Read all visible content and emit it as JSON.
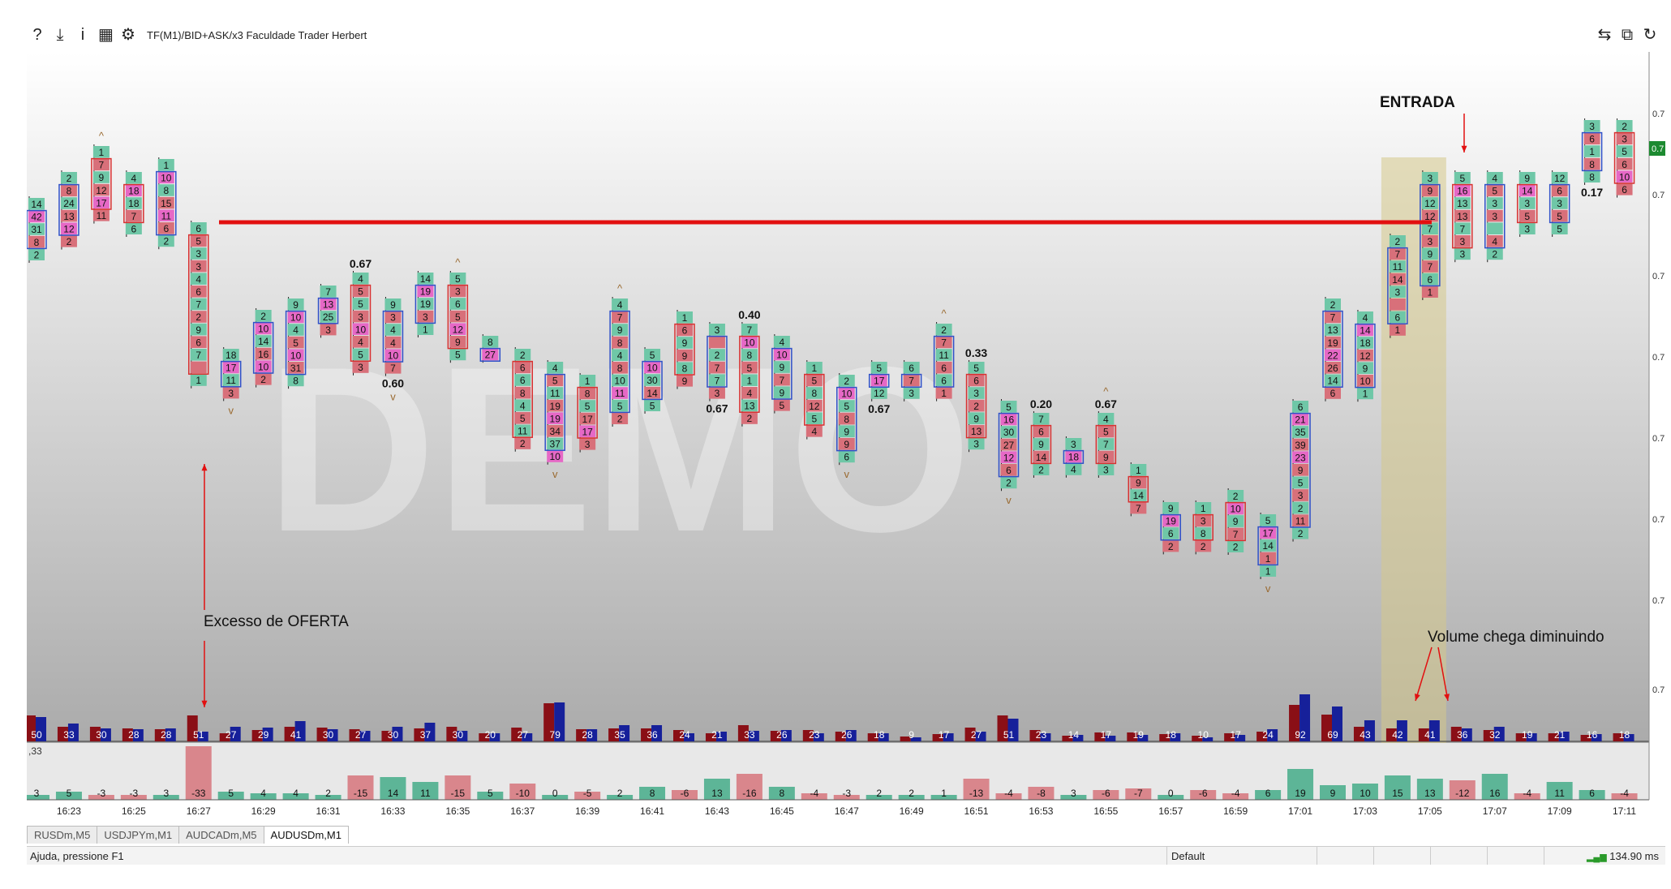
{
  "toolbar": {
    "icons": [
      "help-icon",
      "download-icon",
      "info-icon",
      "template-icon",
      "gear-icon"
    ],
    "icon_glyphs": [
      "?",
      "⤓",
      "i",
      "▦",
      "⚙"
    ],
    "title": "TF(M1)/BID+ASK/x3  Faculdade Trader Herbert",
    "right_icons": [
      "arrows-icon",
      "screenshot-icon",
      "refresh-icon"
    ],
    "right_glyphs": [
      "⇆",
      "⧉",
      "↻"
    ]
  },
  "watermark": "DEMO",
  "tabs": [
    {
      "label": "RUSDm,M5",
      "active": false
    },
    {
      "label": "USDJPYm,M1",
      "active": false
    },
    {
      "label": "AUDCADm,M5",
      "active": false
    },
    {
      "label": "AUDUSDm,M1",
      "active": true
    }
  ],
  "status": {
    "help_text": "Ajuda, pressione F1",
    "profile": "Default",
    "ping": "134.90 ms"
  },
  "colors": {
    "bid": "#d8707a",
    "ask": "#6fc7a7",
    "pink_cell": "#e668c6",
    "box_sell": "#d83030",
    "box_buy": "#3050c8",
    "vol_red": "#8a0f16",
    "vol_blue": "#16209a",
    "delta_pos": "#5db597",
    "delta_neg": "#d9868c",
    "level_line": "#e21010",
    "price_tag": "#1c8a30"
  },
  "chart_data": {
    "type": "footprint",
    "time_labels": [
      "16:23",
      "16:25",
      "16:27",
      "16:29",
      "16:31",
      "16:33",
      "16:35",
      "16:37",
      "16:39",
      "16:41",
      "16:43",
      "16:45",
      "16:47",
      "16:49",
      "16:51",
      "16:53",
      "16:55",
      "16:57",
      "16:59",
      "17:01",
      "17:03",
      "17:05",
      "17:07",
      "17:09",
      "17:11"
    ],
    "price_axis_label": "0.7",
    "current_price_label": "0.7",
    "candles": [
      {
        "top": 180,
        "cells": [
          "14",
          "42",
          "31",
          "8",
          "2"
        ],
        "dir": "buy"
      },
      {
        "top": 148,
        "cells": [
          "2",
          "8",
          "24",
          "13",
          "12",
          "2"
        ],
        "dir": "buy"
      },
      {
        "top": 116,
        "cells": [
          "1",
          "7",
          "9",
          "12",
          "17",
          "11"
        ],
        "dir": "sell",
        "arrow_up": true
      },
      {
        "top": 148,
        "cells": [
          "4",
          "18",
          "18",
          "7",
          "6"
        ],
        "dir": "sell"
      },
      {
        "top": 132,
        "cells": [
          "1",
          "10",
          "8",
          "15",
          "11",
          "6",
          "2"
        ],
        "dir": "buy"
      },
      {
        "top": 210,
        "cells": [
          "6",
          "5",
          "3",
          "3",
          "4",
          "6",
          "7",
          "2",
          "9",
          "6",
          "7",
          "",
          "1"
        ],
        "dir": "sell"
      },
      {
        "top": 366,
        "cells": [
          "18",
          "17",
          "11",
          "3"
        ],
        "dir": "buy",
        "arrow_down": true
      },
      {
        "top": 318,
        "cells": [
          "2",
          "10",
          "14",
          "16",
          "10",
          "2"
        ],
        "dir": "buy"
      },
      {
        "top": 304,
        "cells": [
          "9",
          "10",
          "4",
          "5",
          "10",
          "31",
          "8"
        ],
        "dir": "buy"
      },
      {
        "top": 288,
        "cells": [
          "7",
          "13",
          "25",
          "3"
        ],
        "dir": "buy"
      },
      {
        "top": 272,
        "cells": [
          "4",
          "5",
          "5",
          "3",
          "10",
          "4",
          "5",
          "3"
        ],
        "dir": "sell",
        "label_above": "0.67"
      },
      {
        "top": 304,
        "cells": [
          "9",
          "3",
          "4",
          "4",
          "10",
          "7"
        ],
        "dir": "buy",
        "label_below": "0.60",
        "arrow_down": true
      },
      {
        "top": 272,
        "cells": [
          "14",
          "19",
          "19",
          "3",
          "1"
        ],
        "dir": "buy"
      },
      {
        "top": 272,
        "cells": [
          "5",
          "3",
          "6",
          "5",
          "12",
          "9",
          "5"
        ],
        "dir": "sell",
        "arrow_up": true
      },
      {
        "top": 350,
        "cells": [
          "8",
          "27"
        ],
        "dir": "buy"
      },
      {
        "top": 366,
        "cells": [
          "2",
          "6",
          "6",
          "8",
          "4",
          "5",
          "11",
          "2"
        ],
        "dir": "sell"
      },
      {
        "top": 382,
        "cells": [
          "4",
          "5",
          "11",
          "19",
          "19",
          "34",
          "37",
          "10"
        ],
        "dir": "buy",
        "arrow_down": true
      },
      {
        "top": 398,
        "cells": [
          "1",
          "8",
          "5",
          "17",
          "17",
          "3"
        ],
        "dir": "sell"
      },
      {
        "top": 304,
        "cells": [
          "4",
          "7",
          "9",
          "8",
          "4",
          "8",
          "10",
          "11",
          "5",
          "2"
        ],
        "dir": "buy",
        "arrow_up": true
      },
      {
        "top": 366,
        "cells": [
          "5",
          "10",
          "30",
          "14",
          "5"
        ],
        "dir": "buy"
      },
      {
        "top": 320,
        "cells": [
          "1",
          "6",
          "9",
          "9",
          "8",
          "9"
        ],
        "dir": "sell"
      },
      {
        "top": 335,
        "cells": [
          "3",
          "",
          "2",
          "7",
          "7",
          "3"
        ],
        "dir": "buy",
        "label_below": "0.67"
      },
      {
        "top": 335,
        "cells": [
          "7",
          "10",
          "8",
          "5",
          "1",
          "4",
          "13",
          "2"
        ],
        "dir": "sell",
        "label_above": "0.40"
      },
      {
        "top": 350,
        "cells": [
          "4",
          "10",
          "9",
          "7",
          "9",
          "5"
        ],
        "dir": "buy"
      },
      {
        "top": 382,
        "cells": [
          "1",
          "5",
          "8",
          "12",
          "5",
          "4"
        ],
        "dir": "sell"
      },
      {
        "top": 398,
        "cells": [
          "2",
          "10",
          "5",
          "8",
          "9",
          "9",
          "6"
        ],
        "dir": "buy",
        "arrow_down": true
      },
      {
        "top": 382,
        "cells": [
          "5",
          "17",
          "12"
        ],
        "dir": "buy",
        "label_below": "0.67"
      },
      {
        "top": 382,
        "cells": [
          "6",
          "7",
          "3"
        ],
        "dir": "buy"
      },
      {
        "top": 335,
        "cells": [
          "2",
          "7",
          "11",
          "6",
          "6",
          "1"
        ],
        "dir": "buy",
        "arrow_up": true
      },
      {
        "top": 382,
        "cells": [
          "5",
          "6",
          "3",
          "2",
          "9",
          "13",
          "3"
        ],
        "dir": "sell",
        "label_above": "0.33"
      },
      {
        "top": 430,
        "cells": [
          "5",
          "16",
          "30",
          "27",
          "12",
          "6",
          "2"
        ],
        "dir": "buy",
        "arrow_down": true
      },
      {
        "top": 445,
        "cells": [
          "7",
          "6",
          "9",
          "14",
          "2"
        ],
        "dir": "sell",
        "label_above": "0.20"
      },
      {
        "top": 476,
        "cells": [
          "3",
          "18",
          "4"
        ],
        "dir": "buy"
      },
      {
        "top": 445,
        "cells": [
          "4",
          "5",
          "7",
          "9",
          "3"
        ],
        "dir": "sell",
        "label_above": "0.67",
        "arrow_up": true
      },
      {
        "top": 508,
        "cells": [
          "1",
          "9",
          "14",
          "7"
        ],
        "dir": "sell"
      },
      {
        "top": 555,
        "cells": [
          "9",
          "19",
          "6",
          "2"
        ],
        "dir": "buy"
      },
      {
        "top": 555,
        "cells": [
          "1",
          "3",
          "8",
          "2"
        ],
        "dir": "sell"
      },
      {
        "top": 540,
        "cells": [
          "2",
          "10",
          "9",
          "7",
          "2"
        ],
        "dir": "sell"
      },
      {
        "top": 570,
        "cells": [
          "5",
          "17",
          "14",
          "1",
          "1"
        ],
        "dir": "buy",
        "arrow_down": true
      },
      {
        "top": 430,
        "cells": [
          "6",
          "21",
          "35",
          "39",
          "23",
          "9",
          "5",
          "3",
          "2",
          "11",
          "2"
        ],
        "dir": "buy"
      },
      {
        "top": 304,
        "cells": [
          "2",
          "7",
          "13",
          "19",
          "22",
          "26",
          "14",
          "6"
        ],
        "dir": "buy"
      },
      {
        "top": 320,
        "cells": [
          "4",
          "14",
          "18",
          "12",
          "9",
          "10",
          "1"
        ],
        "dir": "buy"
      },
      {
        "top": 226,
        "cells": [
          "2",
          "7",
          "11",
          "14",
          "3",
          "",
          "6",
          "1"
        ],
        "dir": "buy"
      },
      {
        "top": 148,
        "cells": [
          "3",
          "9",
          "12",
          "12",
          "7",
          "3",
          "9",
          "7",
          "6",
          "1"
        ],
        "dir": "buy"
      },
      {
        "top": 148,
        "cells": [
          "5",
          "16",
          "13",
          "13",
          "7",
          "3",
          "3"
        ],
        "dir": "sell"
      },
      {
        "top": 148,
        "cells": [
          "4",
          "5",
          "3",
          "3",
          "",
          "4",
          "2"
        ],
        "dir": "buy"
      },
      {
        "top": 148,
        "cells": [
          "9",
          "14",
          "3",
          "5",
          "3"
        ],
        "dir": "sell"
      },
      {
        "top": 148,
        "cells": [
          "12",
          "6",
          "3",
          "5",
          "5"
        ],
        "dir": "buy"
      },
      {
        "top": 84,
        "cells": [
          "3",
          "6",
          "1",
          "8",
          "8"
        ],
        "dir": "buy",
        "label_below": "0.17"
      },
      {
        "top": 84,
        "cells": [
          "2",
          "3",
          "5",
          "6",
          "10",
          "6"
        ],
        "dir": "sell"
      }
    ],
    "volume": [
      {
        "label": "50",
        "red": 32,
        "blue": 30
      },
      {
        "label": "33",
        "red": 18,
        "blue": 22
      },
      {
        "label": "30",
        "red": 18,
        "blue": 16
      },
      {
        "label": "28",
        "red": 16,
        "blue": 15
      },
      {
        "label": "28",
        "red": 15,
        "blue": 16
      },
      {
        "label": "51",
        "red": 32,
        "blue": 12
      },
      {
        "label": "27",
        "red": 10,
        "blue": 18
      },
      {
        "label": "29",
        "red": 14,
        "blue": 17
      },
      {
        "label": "41",
        "red": 18,
        "blue": 25
      },
      {
        "label": "30",
        "red": 17,
        "blue": 15
      },
      {
        "label": "27",
        "red": 15,
        "blue": 13
      },
      {
        "label": "30",
        "red": 13,
        "blue": 18
      },
      {
        "label": "37",
        "red": 16,
        "blue": 23
      },
      {
        "label": "30",
        "red": 18,
        "blue": 13
      },
      {
        "label": "20",
        "red": 10,
        "blue": 10
      },
      {
        "label": "27",
        "red": 17,
        "blue": 10
      },
      {
        "label": "79",
        "red": 47,
        "blue": 48
      },
      {
        "label": "28",
        "red": 15,
        "blue": 15
      },
      {
        "label": "35",
        "red": 16,
        "blue": 20
      },
      {
        "label": "36",
        "red": 16,
        "blue": 20
      },
      {
        "label": "24",
        "red": 14,
        "blue": 10
      },
      {
        "label": "21",
        "red": 10,
        "blue": 12
      },
      {
        "label": "33",
        "red": 20,
        "blue": 13
      },
      {
        "label": "26",
        "red": 13,
        "blue": 14
      },
      {
        "label": "23",
        "red": 14,
        "blue": 10
      },
      {
        "label": "26",
        "red": 12,
        "blue": 14
      },
      {
        "label": "18",
        "red": 10,
        "blue": 10
      },
      {
        "label": "9",
        "red": 6,
        "blue": 5
      },
      {
        "label": "17",
        "red": 9,
        "blue": 10
      },
      {
        "label": "27",
        "red": 17,
        "blue": 12
      },
      {
        "label": "51",
        "red": 32,
        "blue": 28
      },
      {
        "label": "23",
        "red": 14,
        "blue": 10
      },
      {
        "label": "14",
        "red": 7,
        "blue": 8
      },
      {
        "label": "17",
        "red": 11,
        "blue": 7
      },
      {
        "label": "19",
        "red": 11,
        "blue": 8
      },
      {
        "label": "18",
        "red": 9,
        "blue": 10
      },
      {
        "label": "10",
        "red": 7,
        "blue": 5
      },
      {
        "label": "17",
        "red": 10,
        "blue": 8
      },
      {
        "label": "24",
        "red": 12,
        "blue": 15
      },
      {
        "label": "92",
        "red": 45,
        "blue": 58
      },
      {
        "label": "69",
        "red": 33,
        "blue": 43
      },
      {
        "label": "43",
        "red": 18,
        "blue": 26
      },
      {
        "label": "42",
        "red": 16,
        "blue": 26
      },
      {
        "label": "41",
        "red": 16,
        "blue": 26
      },
      {
        "label": "36",
        "red": 18,
        "blue": 16
      },
      {
        "label": "32",
        "red": 14,
        "blue": 18
      },
      {
        "label": "19",
        "red": 10,
        "blue": 10
      },
      {
        "label": "21",
        "red": 10,
        "blue": 12
      },
      {
        "label": "16",
        "red": 8,
        "blue": 9
      },
      {
        "label": "18",
        "red": 10,
        "blue": 9
      }
    ],
    "delta": [
      "3",
      "5",
      "-3",
      "-3",
      "3",
      "-33",
      "5",
      "4",
      "4",
      "2",
      "-15",
      "14",
      "11",
      "-15",
      "5",
      "-10",
      "0",
      "-5",
      "2",
      "8",
      "-6",
      "13",
      "-16",
      "8",
      "-4",
      "-3",
      "2",
      "2",
      "1",
      "-13",
      "-4",
      "-8",
      "3",
      "-6",
      "-7",
      "0",
      "-6",
      "-4",
      "6",
      "19",
      "9",
      "10",
      "15",
      "13",
      "-12",
      "16",
      "-4",
      "11",
      "6",
      "-4"
    ],
    "delta_scale_label": ",33",
    "resistance_level_y": 210,
    "highlight_range": [
      42,
      43
    ],
    "annotations": [
      {
        "text": "ENTRADA",
        "bold": true
      },
      {
        "text": "Excesso de OFERTA",
        "bold": false
      },
      {
        "text": "Volume chega diminuindo",
        "bold": false
      }
    ]
  }
}
